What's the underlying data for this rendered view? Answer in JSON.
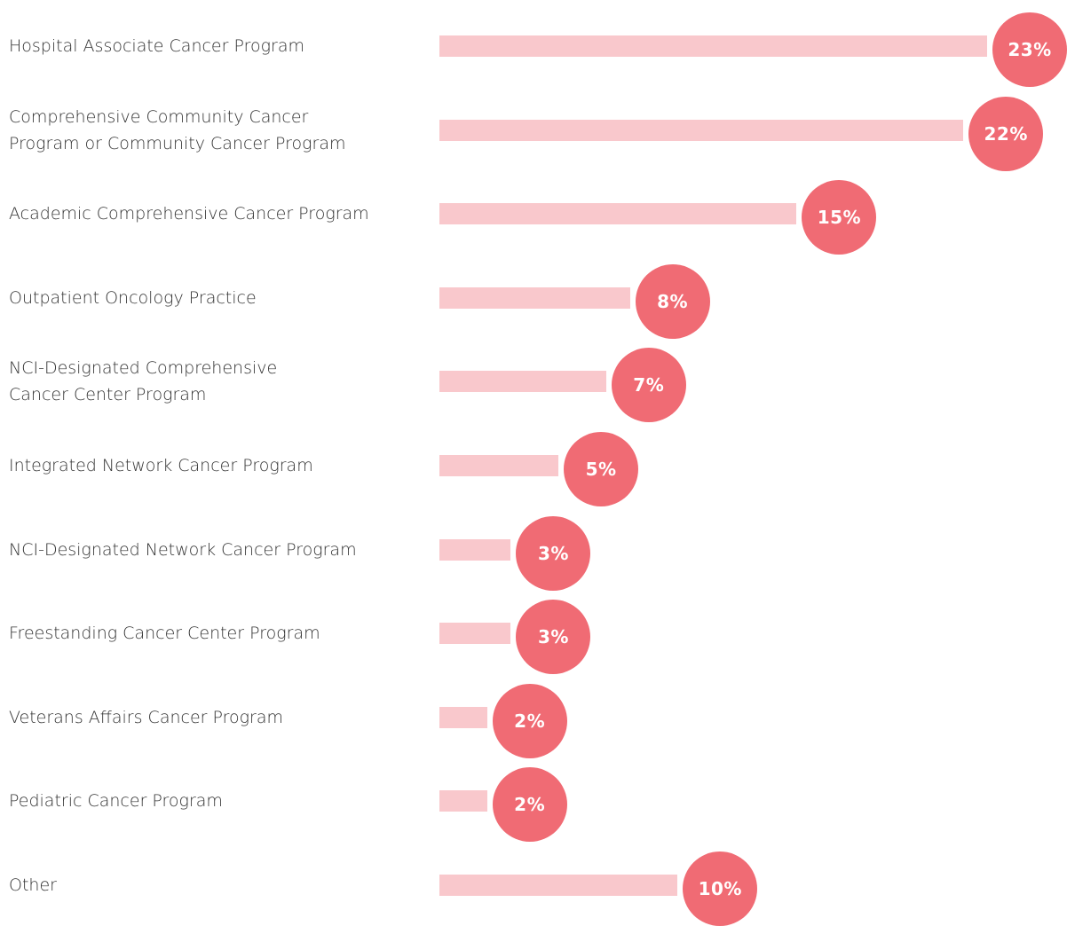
{
  "chart_data": {
    "type": "bar",
    "orientation": "horizontal",
    "categories": [
      "Hospital Associate Cancer Program",
      "Comprehensive Community Cancer\nProgram or Community Cancer Program",
      "Academic Comprehensive Cancer Program",
      "Outpatient Oncology Practice",
      "NCI-Designated Comprehensive\nCancer Center Program",
      "Integrated Network Cancer Program",
      "NCI-Designated Network Cancer Program",
      "Freestanding Cancer Center Program",
      "Veterans Affairs Cancer Program",
      "Pediatric Cancer Program",
      "Other"
    ],
    "values": [
      23,
      22,
      15,
      8,
      7,
      5,
      3,
      3,
      2,
      2,
      10
    ],
    "value_labels": [
      "23%",
      "22%",
      "15%",
      "8%",
      "7%",
      "5%",
      "3%",
      "3%",
      "2%",
      "2%",
      "10%"
    ],
    "color": "#f9c8cc",
    "label_color": "#f06b74"
  }
}
